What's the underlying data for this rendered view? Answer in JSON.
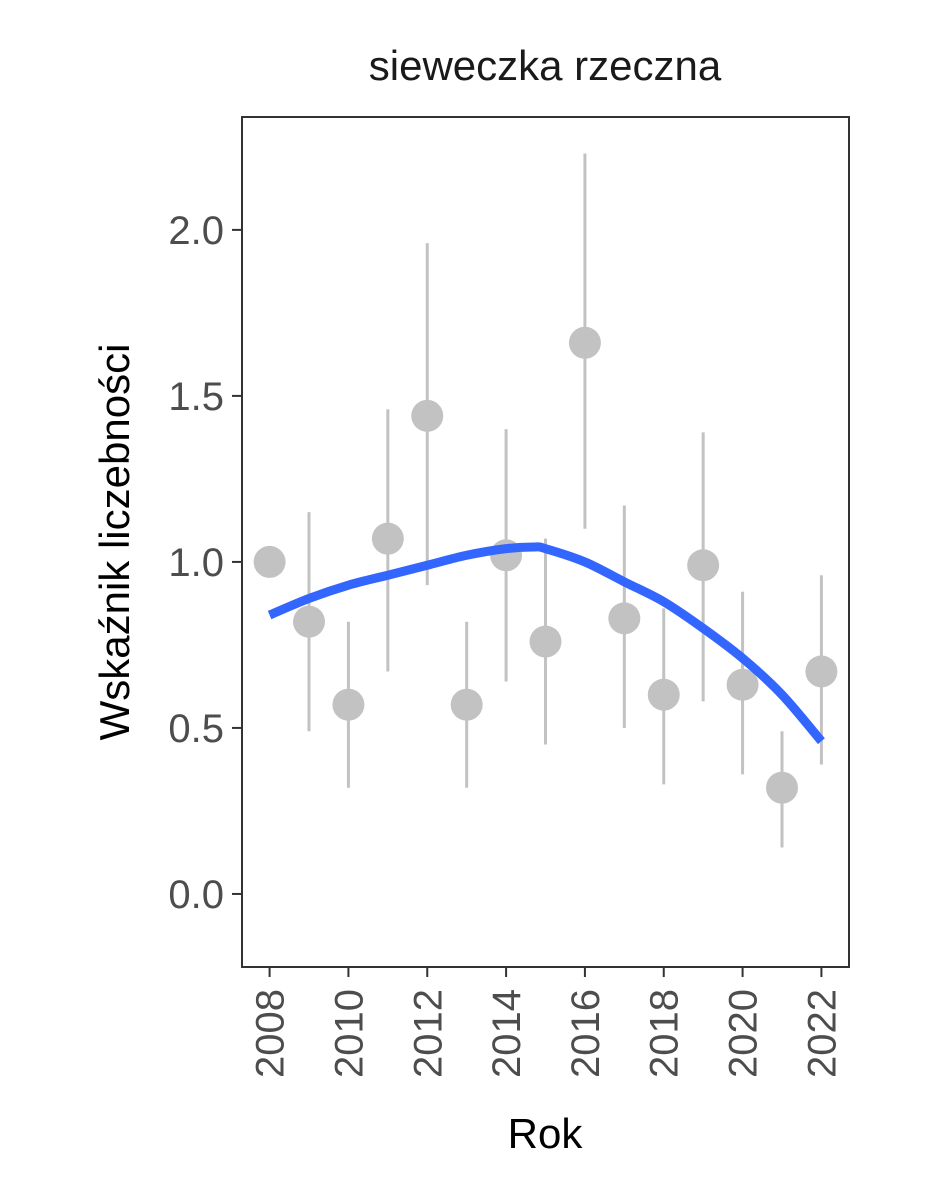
{
  "chart_data": {
    "type": "scatter",
    "title": "sieweczka rzeczna",
    "xlabel": "Rok",
    "ylabel": "Wskaźnik liczebności",
    "xlim": [
      2007.3,
      2022.7
    ],
    "ylim": [
      -0.22,
      2.34
    ],
    "x_ticks": [
      2008,
      2010,
      2012,
      2014,
      2016,
      2018,
      2020,
      2022
    ],
    "x_tick_labels": [
      "2008",
      "2010",
      "2012",
      "2014",
      "2016",
      "2018",
      "2020",
      "2022"
    ],
    "y_ticks": [
      0.0,
      0.5,
      1.0,
      1.5,
      2.0
    ],
    "y_tick_labels": [
      "0.0",
      "0.5",
      "1.0",
      "1.5",
      "2.0"
    ],
    "grid": false,
    "points": [
      {
        "x": 2008,
        "y": 1.0,
        "lower": null,
        "upper": null
      },
      {
        "x": 2009,
        "y": 0.82,
        "lower": 0.49,
        "upper": 1.15
      },
      {
        "x": 2010,
        "y": 0.57,
        "lower": 0.32,
        "upper": 0.82
      },
      {
        "x": 2011,
        "y": 1.07,
        "lower": 0.67,
        "upper": 1.46
      },
      {
        "x": 2012,
        "y": 1.44,
        "lower": 0.93,
        "upper": 1.96
      },
      {
        "x": 2013,
        "y": 0.57,
        "lower": 0.32,
        "upper": 0.82
      },
      {
        "x": 2014,
        "y": 1.02,
        "lower": 0.64,
        "upper": 1.4
      },
      {
        "x": 2015,
        "y": 0.76,
        "lower": 0.45,
        "upper": 1.07
      },
      {
        "x": 2016,
        "y": 1.66,
        "lower": 1.1,
        "upper": 2.23
      },
      {
        "x": 2017,
        "y": 0.83,
        "lower": 0.5,
        "upper": 1.17
      },
      {
        "x": 2018,
        "y": 0.6,
        "lower": 0.33,
        "upper": 0.86
      },
      {
        "x": 2019,
        "y": 0.99,
        "lower": 0.58,
        "upper": 1.39
      },
      {
        "x": 2020,
        "y": 0.63,
        "lower": 0.36,
        "upper": 0.91
      },
      {
        "x": 2021,
        "y": 0.32,
        "lower": 0.14,
        "upper": 0.49
      },
      {
        "x": 2022,
        "y": 0.67,
        "lower": 0.39,
        "upper": 0.96
      }
    ],
    "trend": {
      "x": [
        2008,
        2009,
        2010,
        2011,
        2012,
        2013,
        2014,
        2014.7,
        2015,
        2016,
        2017,
        2018,
        2019,
        2020,
        2021,
        2022
      ],
      "y": [
        0.84,
        0.89,
        0.93,
        0.96,
        0.99,
        1.02,
        1.04,
        1.045,
        1.04,
        1.0,
        0.94,
        0.88,
        0.8,
        0.71,
        0.6,
        0.46
      ]
    },
    "colors": {
      "points": "#c2c2c2",
      "error_bars": "#c2c2c2",
      "trend": "#3366ff",
      "panel_border": "#333333",
      "tick": "#333333"
    }
  }
}
